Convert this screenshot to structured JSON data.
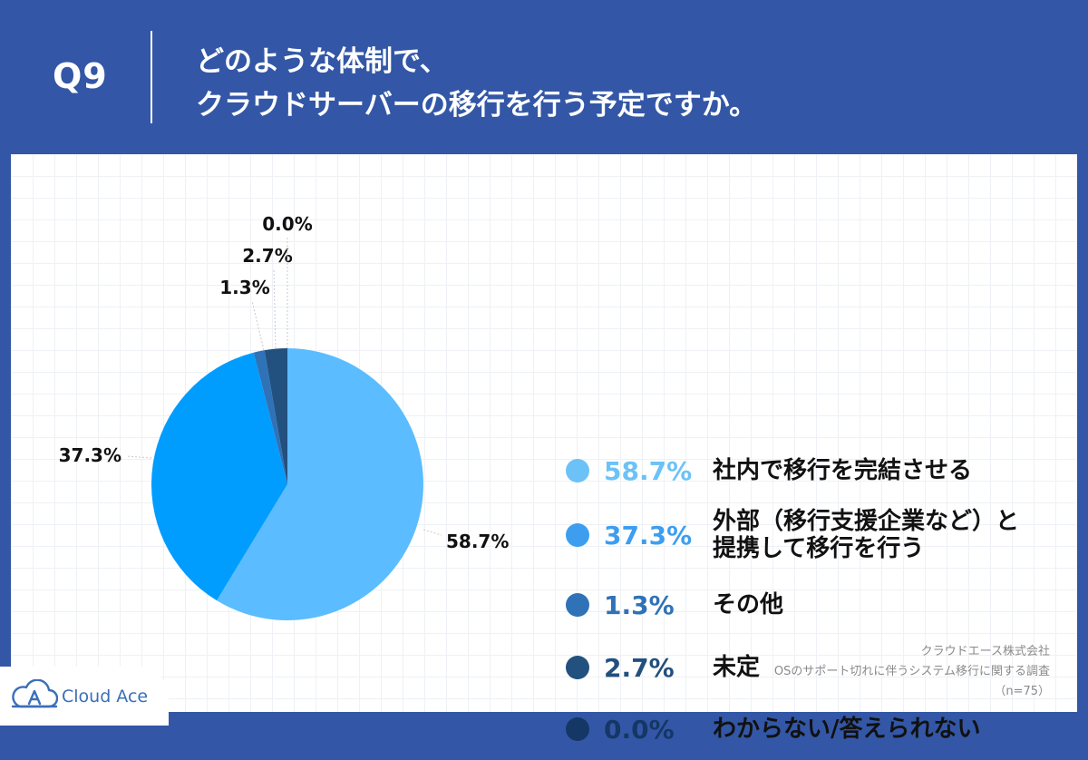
{
  "header": {
    "question_number": "Q9",
    "title_lines": [
      "どのような体制で、",
      "クラウドサーバーの移行を行う予定ですか。"
    ]
  },
  "chart_data": {
    "type": "pie",
    "categories": [
      "社内で移行を完結させる",
      "外部（移行支援企業など）と提携して移行を行う",
      "その他",
      "未定",
      "わからない/答えられない"
    ],
    "values": [
      58.7,
      37.3,
      1.3,
      2.7,
      0.0
    ],
    "value_labels": [
      "58.7%",
      "37.3%",
      "1.3%",
      "2.7%",
      "0.0%"
    ],
    "colors": [
      "#5bbcff",
      "#009dff",
      "#2f72b8",
      "#22507f",
      "#153766"
    ],
    "start": "12 o'clock, clockwise"
  },
  "legend": {
    "items": [
      {
        "pct": "58.7%",
        "label_lines": [
          "社内で移行を完結させる"
        ],
        "dot_color": "#6cc2f7",
        "text_color": "#6cc2f7"
      },
      {
        "pct": "37.3%",
        "label_lines": [
          "外部（移行支援企業など）と",
          "提携して移行を行う"
        ],
        "dot_color": "#3d9ef0",
        "text_color": "#3d9ef0"
      },
      {
        "pct": "1.3%",
        "label_lines": [
          "その他"
        ],
        "dot_color": "#2f72b8",
        "text_color": "#2f72b8"
      },
      {
        "pct": "2.7%",
        "label_lines": [
          "未定"
        ],
        "dot_color": "#22507f",
        "text_color": "#22507f"
      },
      {
        "pct": "0.0%",
        "label_lines": [
          "わからない/答えられない"
        ],
        "dot_color": "#153766",
        "text_color": "#153766"
      }
    ]
  },
  "source": {
    "lines": [
      "クラウドエース株式会社",
      "OSのサポート切れに伴うシステム移行に関する調査",
      "（n=75）"
    ]
  },
  "logo": {
    "text": "Cloud Ace",
    "color": "#3a6fb8"
  }
}
